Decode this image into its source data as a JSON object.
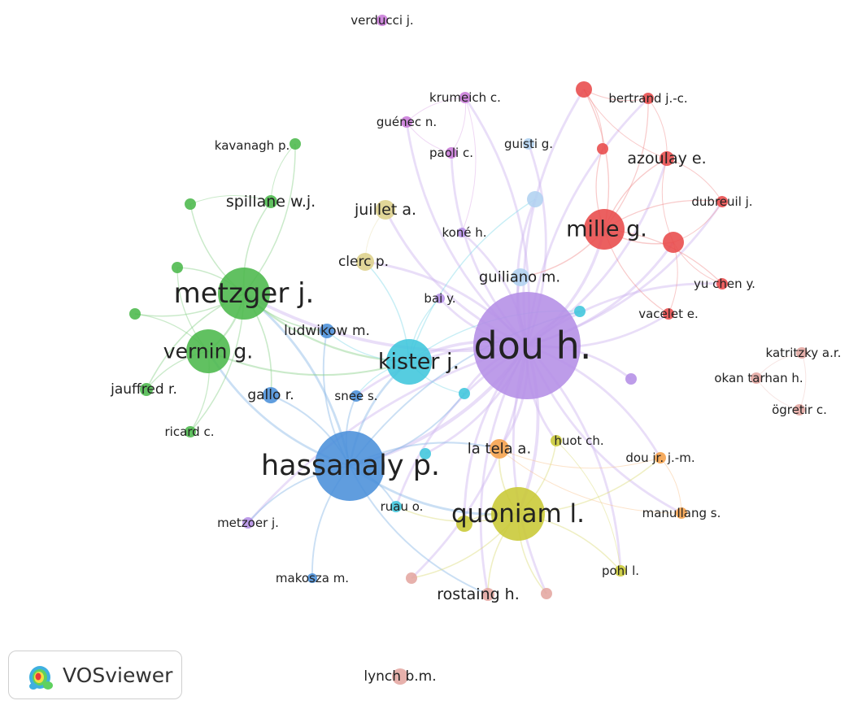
{
  "clusters": [
    {
      "id": "c1",
      "color": "#e84a4a"
    },
    {
      "id": "c2",
      "color": "#4bb84b"
    },
    {
      "id": "c3",
      "color": "#4a90d9"
    },
    {
      "id": "c4",
      "color": "#c8c834"
    },
    {
      "id": "c5",
      "color": "#b48ee6"
    },
    {
      "id": "c6",
      "color": "#3fc6dc"
    },
    {
      "id": "c7",
      "color": "#f5a04a"
    },
    {
      "id": "c8",
      "color": "#c87ad8"
    },
    {
      "id": "c9",
      "color": "#b0d2f0"
    },
    {
      "id": "c10",
      "color": "#e4a6a0"
    },
    {
      "id": "c11",
      "color": "#ddd08a"
    }
  ],
  "nodes": [
    {
      "id": "verducci",
      "label": "verducci j.",
      "cluster": "c8"
    },
    {
      "id": "krumeich",
      "label": "krumeich c.",
      "cluster": "c8"
    },
    {
      "id": "guenec",
      "label": "guénec n.",
      "cluster": "c8"
    },
    {
      "id": "paoli",
      "label": "paoli c.",
      "cluster": "c8"
    },
    {
      "id": "guisti",
      "label": "guisti g.",
      "cluster": "c9"
    },
    {
      "id": "bertrand",
      "label": "bertrand j.-c.",
      "cluster": "c1"
    },
    {
      "id": "azoulay",
      "label": "azoulay e.",
      "cluster": "c1"
    },
    {
      "id": "dubreuil",
      "label": "dubreuil j.",
      "cluster": "c1"
    },
    {
      "id": "mille",
      "label": "mille g.",
      "cluster": "c1"
    },
    {
      "id": "yuchen",
      "label": "yu chen y.",
      "cluster": "c1"
    },
    {
      "id": "vacelet",
      "label": "vacelet e.",
      "cluster": "c1"
    },
    {
      "id": "kavanagh",
      "label": "kavanagh p.",
      "cluster": "c2"
    },
    {
      "id": "spillane",
      "label": "spillane w.j.",
      "cluster": "c2"
    },
    {
      "id": "juillet",
      "label": "juillet a.",
      "cluster": "c11"
    },
    {
      "id": "clerc",
      "label": "clerc p.",
      "cluster": "c11"
    },
    {
      "id": "kone",
      "label": "koné h.",
      "cluster": "c5"
    },
    {
      "id": "guiliano",
      "label": "guiliano m.",
      "cluster": "c9"
    },
    {
      "id": "metzger",
      "label": "metzger j.",
      "cluster": "c2"
    },
    {
      "id": "bai",
      "label": "bai y.",
      "cluster": "c5"
    },
    {
      "id": "ludwikow",
      "label": "ludwikow m.",
      "cluster": "c3"
    },
    {
      "id": "dou",
      "label": "dou h.",
      "cluster": "c5"
    },
    {
      "id": "vernin",
      "label": "vernin g.",
      "cluster": "c2"
    },
    {
      "id": "kister",
      "label": "kister j.",
      "cluster": "c6"
    },
    {
      "id": "katritzky",
      "label": "katritzky a.r.",
      "cluster": "c10"
    },
    {
      "id": "okan",
      "label": "okan tarhan h.",
      "cluster": "c10"
    },
    {
      "id": "jauffred",
      "label": "jauffred r.",
      "cluster": "c2"
    },
    {
      "id": "gallo",
      "label": "gallo r.",
      "cluster": "c3"
    },
    {
      "id": "snee",
      "label": "snee s.",
      "cluster": "c3"
    },
    {
      "id": "ogretir",
      "label": "ögretir c.",
      "cluster": "c10"
    },
    {
      "id": "ricard",
      "label": "ricard c.",
      "cluster": "c2"
    },
    {
      "id": "huot",
      "label": "huot ch.",
      "cluster": "c4"
    },
    {
      "id": "latela",
      "label": "la tela a.",
      "cluster": "c7"
    },
    {
      "id": "doujr",
      "label": "dou jr. j.-m.",
      "cluster": "c7"
    },
    {
      "id": "hassanaly",
      "label": "hassanaly p.",
      "cluster": "c3"
    },
    {
      "id": "ruau",
      "label": "ruau o.",
      "cluster": "c6"
    },
    {
      "id": "quoniam",
      "label": "quoniam l.",
      "cluster": "c4"
    },
    {
      "id": "manullang",
      "label": "manullang s.",
      "cluster": "c7"
    },
    {
      "id": "metzoer",
      "label": "metzoer j.",
      "cluster": "c5"
    },
    {
      "id": "pohl",
      "label": "pohl l.",
      "cluster": "c4"
    },
    {
      "id": "makosza",
      "label": "makosza m.",
      "cluster": "c3"
    },
    {
      "id": "rostaing",
      "label": "rostaing h.",
      "cluster": "c10"
    },
    {
      "id": "lynch",
      "label": "lynch b.m.",
      "cluster": "c10"
    },
    {
      "id": "u_red1",
      "label": "",
      "cluster": "c1"
    },
    {
      "id": "u_red2",
      "label": "",
      "cluster": "c1"
    },
    {
      "id": "u_red3",
      "label": "",
      "cluster": "c1"
    },
    {
      "id": "u_g1",
      "label": "",
      "cluster": "c2"
    },
    {
      "id": "u_g2",
      "label": "",
      "cluster": "c2"
    },
    {
      "id": "u_g3",
      "label": "",
      "cluster": "c2"
    },
    {
      "id": "u_lb1",
      "label": "",
      "cluster": "c9"
    },
    {
      "id": "u_cy1",
      "label": "",
      "cluster": "c6"
    },
    {
      "id": "u_cy2",
      "label": "",
      "cluster": "c6"
    },
    {
      "id": "u_cy3",
      "label": "",
      "cluster": "c6"
    },
    {
      "id": "u_pu1",
      "label": "",
      "cluster": "c5"
    },
    {
      "id": "u_y1",
      "label": "",
      "cluster": "c4"
    },
    {
      "id": "u_p1",
      "label": "",
      "cluster": "c10"
    },
    {
      "id": "u_p2",
      "label": "",
      "cluster": "c10"
    }
  ],
  "edges": [
    [
      "dou",
      "hassanaly"
    ],
    [
      "dou",
      "kister"
    ],
    [
      "dou",
      "quoniam"
    ],
    [
      "dou",
      "mille"
    ],
    [
      "dou",
      "guiliano"
    ],
    [
      "dou",
      "azoulay"
    ],
    [
      "dou",
      "bertrand"
    ],
    [
      "dou",
      "dubreuil"
    ],
    [
      "dou",
      "yuchen"
    ],
    [
      "dou",
      "vacelet"
    ],
    [
      "dou",
      "u_red1"
    ],
    [
      "dou",
      "u_red3"
    ],
    [
      "dou",
      "latela"
    ],
    [
      "dou",
      "huot"
    ],
    [
      "dou",
      "doujr"
    ],
    [
      "dou",
      "manullang"
    ],
    [
      "dou",
      "pohl"
    ],
    [
      "dou",
      "rostaing"
    ],
    [
      "dou",
      "u_p1"
    ],
    [
      "dou",
      "u_p2"
    ],
    [
      "dou",
      "paoli"
    ],
    [
      "dou",
      "krumeich"
    ],
    [
      "dou",
      "guenec"
    ],
    [
      "dou",
      "kone"
    ],
    [
      "dou",
      "bai"
    ],
    [
      "dou",
      "guisti"
    ],
    [
      "dou",
      "u_lb1"
    ],
    [
      "dou",
      "clerc"
    ],
    [
      "dou",
      "juillet"
    ],
    [
      "dou",
      "ruau"
    ],
    [
      "dou",
      "u_cy1"
    ],
    [
      "dou",
      "u_cy2"
    ],
    [
      "dou",
      "u_cy3"
    ],
    [
      "dou",
      "u_y1"
    ],
    [
      "dou",
      "u_pu1"
    ],
    [
      "dou",
      "metzoer"
    ],
    [
      "dou",
      "metzger"
    ],
    [
      "dou",
      "snee"
    ],
    [
      "mille",
      "azoulay"
    ],
    [
      "mille",
      "bertrand"
    ],
    [
      "mille",
      "dubreuil"
    ],
    [
      "mille",
      "u_red1"
    ],
    [
      "mille",
      "u_red2"
    ],
    [
      "mille",
      "u_red3"
    ],
    [
      "mille",
      "yuchen"
    ],
    [
      "mille",
      "vacelet"
    ],
    [
      "mille",
      "guiliano"
    ],
    [
      "azoulay",
      "bertrand"
    ],
    [
      "azoulay",
      "dubreuil"
    ],
    [
      "azoulay",
      "u_red3"
    ],
    [
      "azoulay",
      "u_red1"
    ],
    [
      "u_red3",
      "yuchen"
    ],
    [
      "u_red3",
      "vacelet"
    ],
    [
      "u_red3",
      "dubreuil"
    ],
    [
      "u_red1",
      "u_red2"
    ],
    [
      "u_red1",
      "bertrand"
    ],
    [
      "hassanaly",
      "kister"
    ],
    [
      "hassanaly",
      "metzger"
    ],
    [
      "hassanaly",
      "vernin"
    ],
    [
      "hassanaly",
      "quoniam"
    ],
    [
      "hassanaly",
      "ludwikow"
    ],
    [
      "hassanaly",
      "gallo"
    ],
    [
      "hassanaly",
      "snee"
    ],
    [
      "hassanaly",
      "makosza"
    ],
    [
      "hassanaly",
      "ruau"
    ],
    [
      "hassanaly",
      "metzoer"
    ],
    [
      "hassanaly",
      "latela"
    ],
    [
      "hassanaly",
      "rostaing"
    ],
    [
      "hassanaly",
      "u_cy1"
    ],
    [
      "hassanaly",
      "u_cy2"
    ],
    [
      "metzger",
      "vernin"
    ],
    [
      "metzger",
      "kister"
    ],
    [
      "metzger",
      "spillane"
    ],
    [
      "metzger",
      "kavanagh"
    ],
    [
      "metzger",
      "u_g1"
    ],
    [
      "metzger",
      "u_g2"
    ],
    [
      "metzger",
      "u_g3"
    ],
    [
      "metzger",
      "jauffred"
    ],
    [
      "metzger",
      "ricard"
    ],
    [
      "metzger",
      "ludwikow"
    ],
    [
      "metzger",
      "gallo"
    ],
    [
      "vernin",
      "jauffred"
    ],
    [
      "vernin",
      "ricard"
    ],
    [
      "vernin",
      "u_g3"
    ],
    [
      "vernin",
      "u_g2"
    ],
    [
      "vernin",
      "kister"
    ],
    [
      "spillane",
      "kavanagh"
    ],
    [
      "spillane",
      "u_g1"
    ],
    [
      "kister",
      "ludwikow"
    ],
    [
      "kister",
      "snee"
    ],
    [
      "kister",
      "u_cy1"
    ],
    [
      "kister",
      "u_cy2"
    ],
    [
      "kister",
      "u_lb1"
    ],
    [
      "kister",
      "clerc"
    ],
    [
      "kister",
      "bai"
    ],
    [
      "quoniam",
      "huot"
    ],
    [
      "quoniam",
      "pohl"
    ],
    [
      "quoniam",
      "rostaing"
    ],
    [
      "quoniam",
      "latela"
    ],
    [
      "quoniam",
      "u_y1"
    ],
    [
      "quoniam",
      "u_p1"
    ],
    [
      "quoniam",
      "u_p2"
    ],
    [
      "quoniam",
      "ruau"
    ],
    [
      "quoniam",
      "doujr"
    ],
    [
      "clerc",
      "juillet"
    ],
    [
      "paoli",
      "krumeich"
    ],
    [
      "paoli",
      "guenec"
    ],
    [
      "krumeich",
      "guenec"
    ],
    [
      "krumeich",
      "kone"
    ],
    [
      "katritzky",
      "okan"
    ],
    [
      "katritzky",
      "ogretir"
    ],
    [
      "okan",
      "ogretir"
    ],
    [
      "doujr",
      "manullang"
    ],
    [
      "latela",
      "doujr"
    ],
    [
      "huot",
      "pohl"
    ],
    [
      "latela",
      "manullang"
    ]
  ],
  "node_weights": {
    "dou": 66,
    "hassanaly": 43,
    "quoniam": 33,
    "metzger": 32,
    "vernin": 27,
    "kister": 28,
    "mille": 25,
    "u_red3": 13,
    "u_red1": 10,
    "guiliano": 11,
    "u_lb1": 10,
    "juillet": 12,
    "clerc": 11,
    "azoulay": 9,
    "latela": 12,
    "u_y1": 10,
    "bertrand": 7,
    "dubreuil": 7,
    "yuchen": 7,
    "vacelet": 7,
    "ludwikow": 9,
    "gallo": 10,
    "snee": 7,
    "jauffred": 8,
    "u_g1": 7,
    "u_g2": 7,
    "u_g3": 7,
    "spillane": 8,
    "kavanagh": 7,
    "ricard": 7,
    "u_cy1": 7,
    "u_cy2": 7,
    "u_cy3": 7,
    "paoli": 7,
    "krumeich": 7,
    "guenec": 7,
    "kone": 6,
    "bai": 6,
    "guisti": 7,
    "verducci": 7,
    "u_pu1": 7,
    "huot": 7,
    "doujr": 7,
    "manullang": 7,
    "pohl": 7,
    "ruau": 7,
    "metzoer": 7,
    "makosza": 6,
    "rostaing": 8,
    "u_p1": 7,
    "u_p2": 7,
    "katritzky": 7,
    "okan": 7,
    "ogretir": 7,
    "lynch": 10,
    "u_red2": 7
  },
  "brand": {
    "name": "VOSviewer",
    "icon": "vosviewer-logo-icon"
  }
}
